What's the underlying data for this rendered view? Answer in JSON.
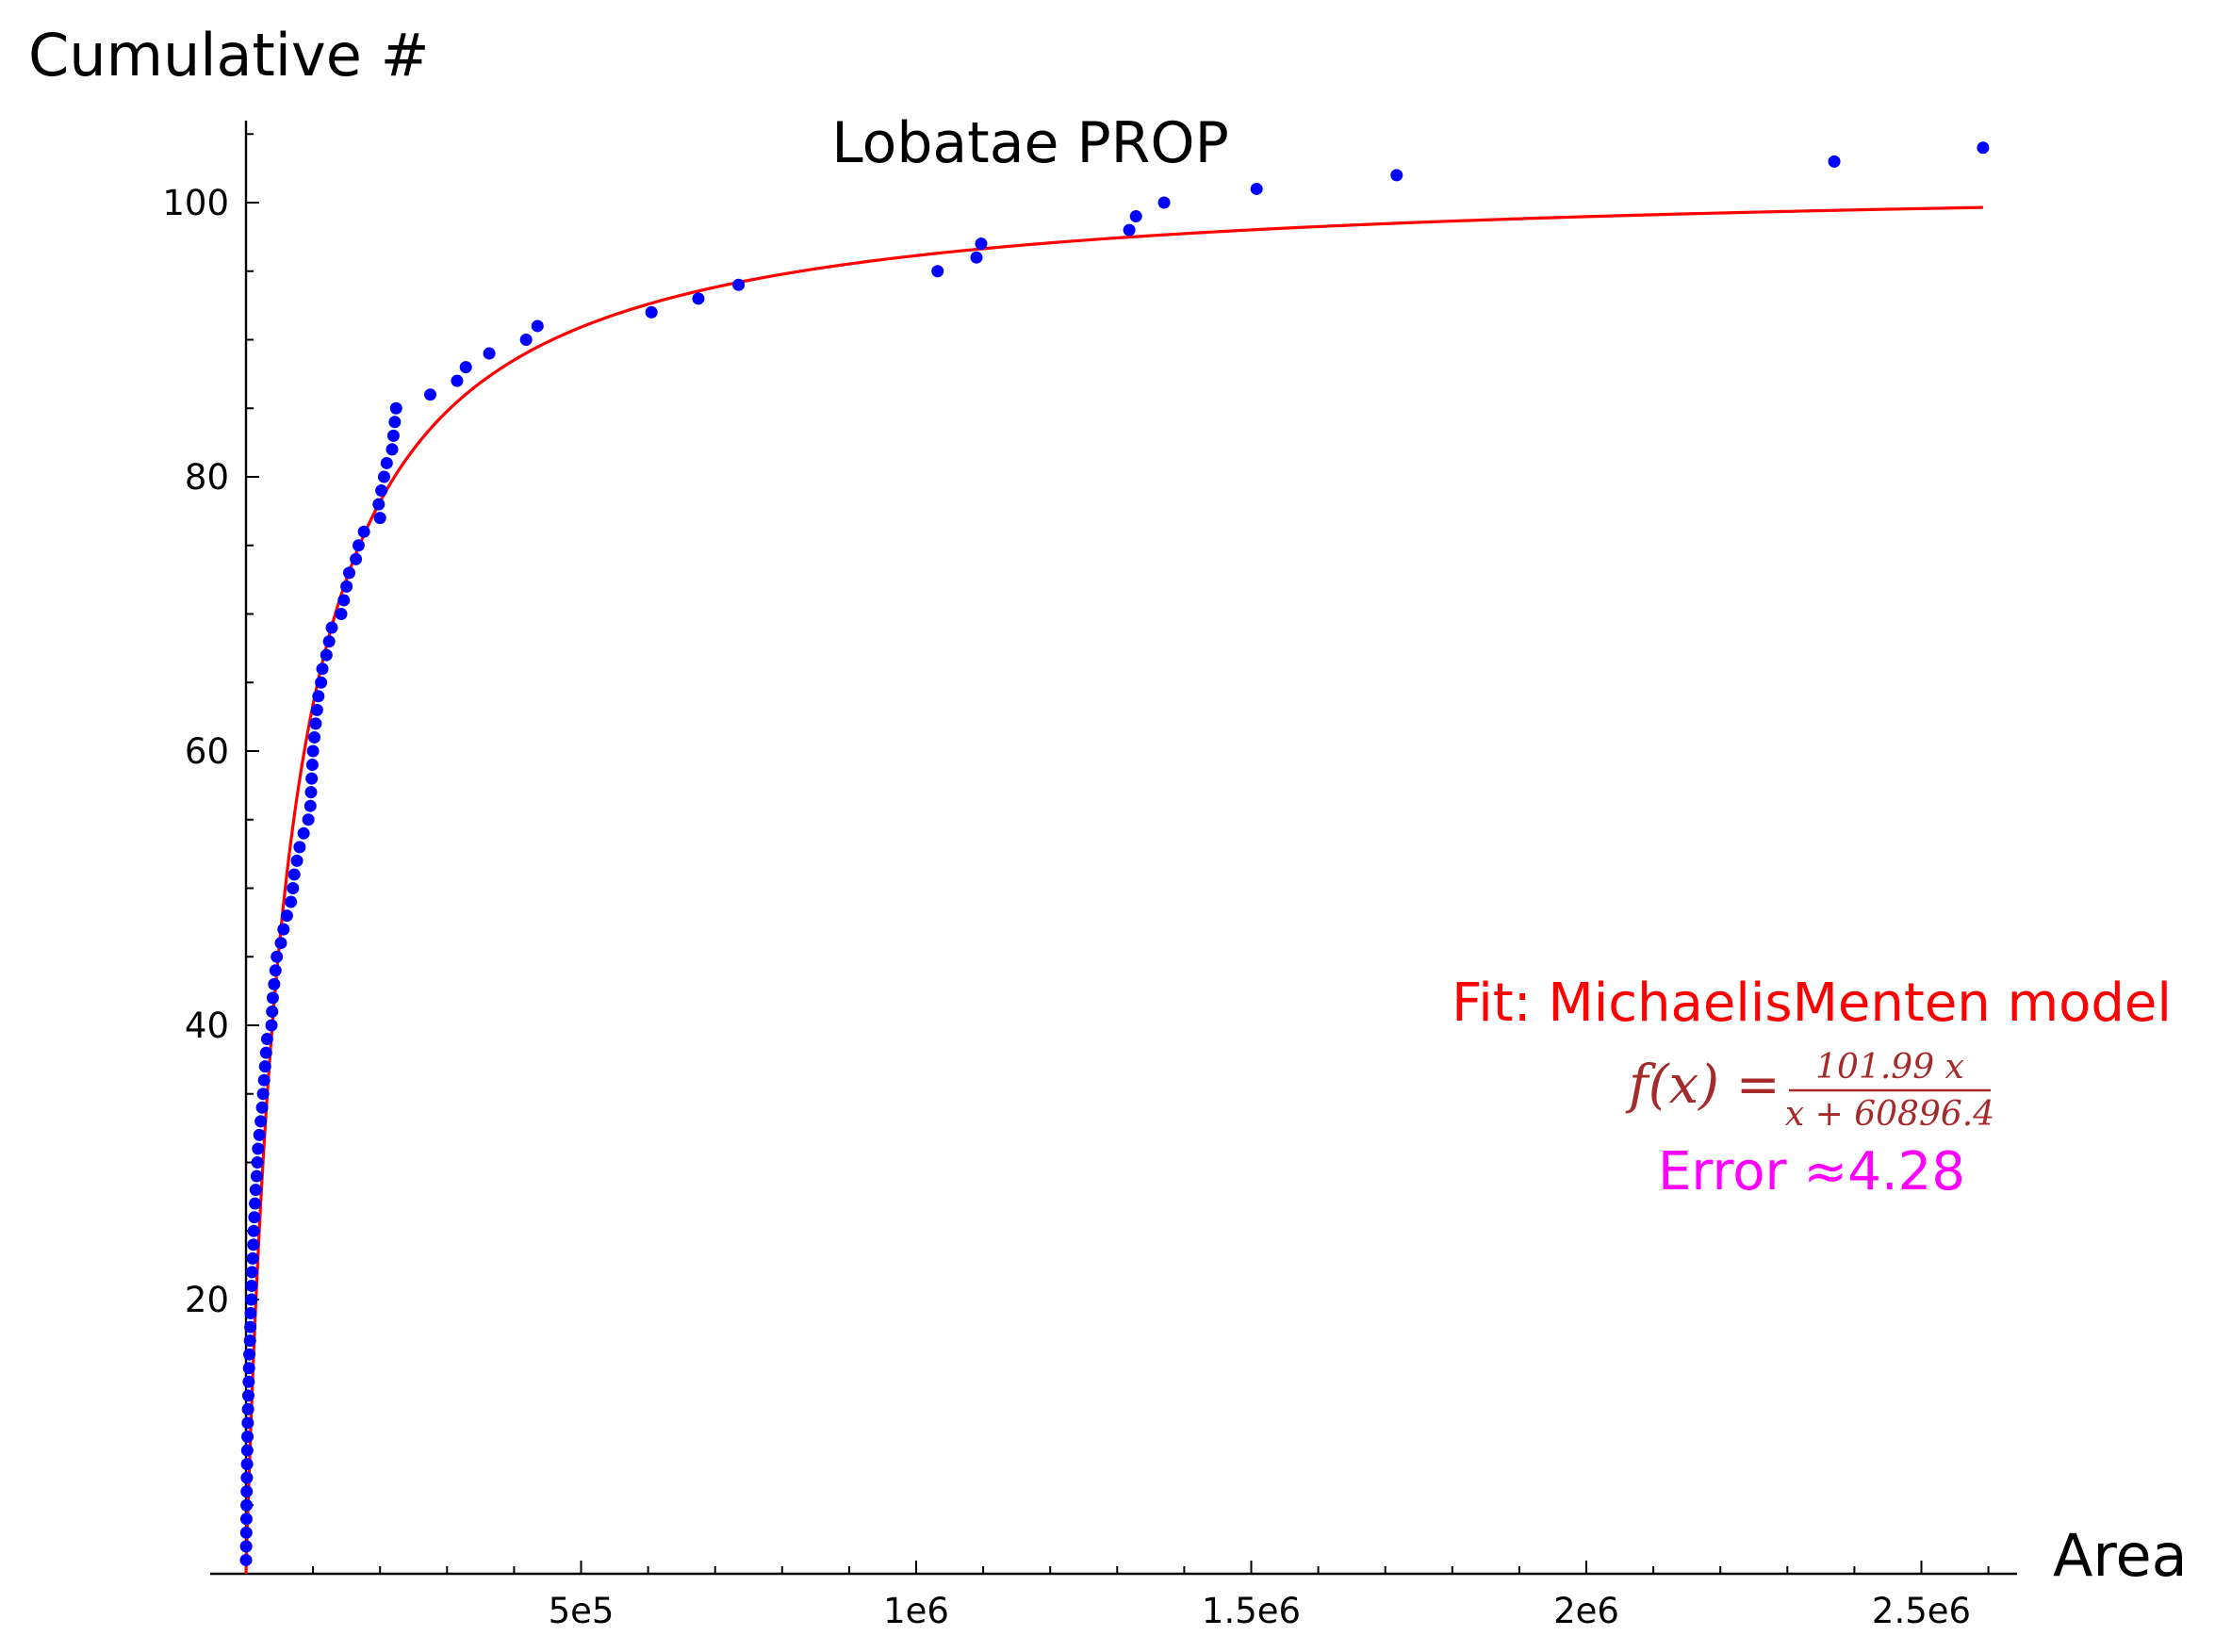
{
  "chart_data": {
    "type": "scatter",
    "title": "Lobatae PROP",
    "xlabel": "Area",
    "ylabel": "Cumulative #",
    "xlim": [
      -55000,
      2650000
    ],
    "ylim": [
      0,
      106
    ],
    "grid": false,
    "x_ticks": [
      {
        "value": 500000,
        "label": "5e5"
      },
      {
        "value": 1000000,
        "label": "1e6"
      },
      {
        "value": 1500000,
        "label": "1.5e6"
      },
      {
        "value": 2000000,
        "label": "2e6"
      },
      {
        "value": 2500000,
        "label": "2.5e6"
      }
    ],
    "y_ticks": [
      {
        "value": 20,
        "label": "20"
      },
      {
        "value": 40,
        "label": "40"
      },
      {
        "value": 60,
        "label": "60"
      },
      {
        "value": 80,
        "label": "80"
      },
      {
        "value": 100,
        "label": "100"
      }
    ],
    "series": [
      {
        "kind": "points",
        "color": "#0000ff",
        "points": [
          [
            0,
            1
          ],
          [
            200,
            2
          ],
          [
            400,
            3
          ],
          [
            600,
            4
          ],
          [
            800,
            5
          ],
          [
            1000,
            6
          ],
          [
            1300,
            7
          ],
          [
            1600,
            8
          ],
          [
            1900,
            9
          ],
          [
            2200,
            10
          ],
          [
            2600,
            11
          ],
          [
            3000,
            12
          ],
          [
            3500,
            13
          ],
          [
            4000,
            14
          ],
          [
            4500,
            15
          ],
          [
            5000,
            16
          ],
          [
            6000,
            17
          ],
          [
            6500,
            18
          ],
          [
            7000,
            19
          ],
          [
            8000,
            20
          ],
          [
            8500,
            21
          ],
          [
            9000,
            22
          ],
          [
            10000,
            23
          ],
          [
            11000,
            24
          ],
          [
            11500,
            25
          ],
          [
            12500,
            26
          ],
          [
            13500,
            27
          ],
          [
            14500,
            28
          ],
          [
            16000,
            29
          ],
          [
            17000,
            30
          ],
          [
            18000,
            31
          ],
          [
            20000,
            32
          ],
          [
            22000,
            33
          ],
          [
            24000,
            34
          ],
          [
            25500,
            35
          ],
          [
            27000,
            36
          ],
          [
            28500,
            37
          ],
          [
            30000,
            38
          ],
          [
            31500,
            39
          ],
          [
            38000,
            40
          ],
          [
            39000,
            41
          ],
          [
            40000,
            42
          ],
          [
            42000,
            43
          ],
          [
            44000,
            44
          ],
          [
            46000,
            45
          ],
          [
            52000,
            46
          ],
          [
            56000,
            47
          ],
          [
            61000,
            48
          ],
          [
            67000,
            49
          ],
          [
            70000,
            50
          ],
          [
            72000,
            51
          ],
          [
            76000,
            52
          ],
          [
            80000,
            53
          ],
          [
            86000,
            54
          ],
          [
            93000,
            55
          ],
          [
            96000,
            56
          ],
          [
            97000,
            57
          ],
          [
            98000,
            58
          ],
          [
            99000,
            59
          ],
          [
            100000,
            60
          ],
          [
            102000,
            61
          ],
          [
            104000,
            62
          ],
          [
            106000,
            63
          ],
          [
            108000,
            64
          ],
          [
            112000,
            65
          ],
          [
            114000,
            66
          ],
          [
            120000,
            67
          ],
          [
            124000,
            68
          ],
          [
            128000,
            69
          ],
          [
            142000,
            70
          ],
          [
            146000,
            71
          ],
          [
            150000,
            72
          ],
          [
            154000,
            73
          ],
          [
            164000,
            74
          ],
          [
            168000,
            75
          ],
          [
            176000,
            76
          ],
          [
            200000,
            77
          ],
          [
            198000,
            78
          ],
          [
            202000,
            79
          ],
          [
            206000,
            80
          ],
          [
            210000,
            81
          ],
          [
            218000,
            82
          ],
          [
            220000,
            83
          ],
          [
            222000,
            84
          ],
          [
            224000,
            85
          ],
          [
            275000,
            86
          ],
          [
            315000,
            87
          ],
          [
            328000,
            88
          ],
          [
            363000,
            89
          ],
          [
            418000,
            90
          ],
          [
            435000,
            91
          ],
          [
            605000,
            92
          ],
          [
            675000,
            93
          ],
          [
            735000,
            94
          ],
          [
            1032000,
            95
          ],
          [
            1090000,
            96
          ],
          [
            1097000,
            97
          ],
          [
            1318000,
            98
          ],
          [
            1328000,
            99
          ],
          [
            1370000,
            100
          ],
          [
            1508000,
            101
          ],
          [
            1717000,
            102
          ],
          [
            2370000,
            103
          ],
          [
            2592000,
            104
          ]
        ]
      },
      {
        "kind": "curve",
        "color": "#ff0000",
        "name": "Fit: MichaelisMenten model",
        "model": "michaelis-menten",
        "vmax": 101.99,
        "km": 60896.4,
        "x_range": [
          0,
          2592000
        ]
      }
    ],
    "annotations": {
      "fit_label": "Fit: MichaelisMenten model",
      "formula_lhs": "f(x) =",
      "formula_numerator": "101.99 x",
      "formula_denominator": "x + 60896.4",
      "error_label": "Error ≈4.28",
      "colors": {
        "fit": "#ff0000",
        "formula": "#a52a2a",
        "error": "#ff00ff"
      }
    }
  }
}
